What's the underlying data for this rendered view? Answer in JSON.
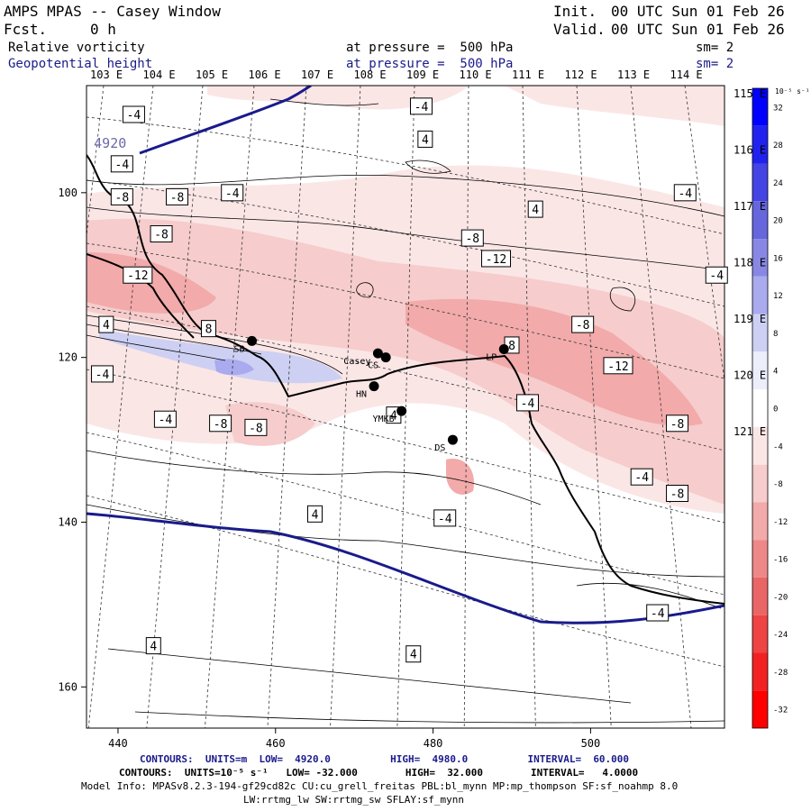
{
  "header": {
    "title": "AMPS MPAS -- Casey Window",
    "fcst_label": "Fcst.",
    "fcst_value": "0 h",
    "init_label": "Init.",
    "init_value": "00 UTC Sun 01 Feb 26",
    "valid_label": "Valid.",
    "valid_value": "00 UTC Sun 01 Feb 26",
    "field1_name": "Relative vorticity",
    "field1_level": "at pressure =  500 hPa",
    "field1_sm": "sm= 2",
    "field2_name": "Geopotential height",
    "field2_level": "at pressure =  500 hPa",
    "field2_sm": "sm= 2"
  },
  "top_lon_labels": [
    "103 E",
    "104 E",
    "105 E",
    "106 E",
    "107 E",
    "108 E",
    "109 E",
    "110 E",
    "111 E",
    "112 E",
    "113 E",
    "114 E"
  ],
  "right_lon_labels": [
    "115 E",
    "116 E",
    "117 E",
    "118 E",
    "119 E",
    "120 E",
    "121 E"
  ],
  "x_ticks": [
    440,
    460,
    480,
    500
  ],
  "y_ticks": [
    100,
    120,
    140,
    160
  ],
  "colorbar": {
    "units": "10⁻⁵ s⁻¹",
    "labels": [
      "32",
      "28",
      "24",
      "20",
      "16",
      "12",
      "8",
      "4",
      "0",
      "-4",
      "-8",
      "-12",
      "-16",
      "-20",
      "-24",
      "-28",
      "-32"
    ],
    "colors": [
      "#0000ff",
      "#2222ee",
      "#4444e4",
      "#6666dd",
      "#8888e4",
      "#aaaaee",
      "#cdd0f2",
      "#eceefb",
      "#ffffff",
      "#fbe6e6",
      "#f6cccc",
      "#f2aaaa",
      "#ee8888",
      "#ea6666",
      "#ee4444",
      "#f22222",
      "#ff0000"
    ]
  },
  "stations": [
    {
      "label": "SB",
      "x": 457,
      "y": 118
    },
    {
      "label": "Casey",
      "x": 473,
      "y": 119.5
    },
    {
      "label": "CS",
      "x": 474,
      "y": 120
    },
    {
      "label": "HN",
      "x": 472.5,
      "y": 123.5
    },
    {
      "label": "YMKB",
      "x": 476,
      "y": 126.5
    },
    {
      "label": "DS",
      "x": 482.5,
      "y": 130
    },
    {
      "label": "LP",
      "x": 489,
      "y": 119
    }
  ],
  "contour_labels": [
    {
      "text": "-4",
      "x": 478.5,
      "y": 89.5
    },
    {
      "text": "-4",
      "x": 442,
      "y": 90.5
    },
    {
      "text": "4",
      "x": 479,
      "y": 93.5
    },
    {
      "text": "-4",
      "x": 440.5,
      "y": 96.5
    },
    {
      "text": "-8",
      "x": 440.5,
      "y": 100.5
    },
    {
      "text": "-8",
      "x": 447.5,
      "y": 100.5
    },
    {
      "text": "-4",
      "x": 454.5,
      "y": 100
    },
    {
      "text": "4",
      "x": 493,
      "y": 102
    },
    {
      "text": "-4",
      "x": 512,
      "y": 100
    },
    {
      "text": "-8",
      "x": 445.5,
      "y": 105
    },
    {
      "text": "-8",
      "x": 485,
      "y": 105.5
    },
    {
      "text": "-12",
      "x": 488,
      "y": 108
    },
    {
      "text": "-12",
      "x": 442.5,
      "y": 110
    },
    {
      "text": "-4",
      "x": 516,
      "y": 110
    },
    {
      "text": "4",
      "x": 438.5,
      "y": 116
    },
    {
      "text": "8",
      "x": 451.5,
      "y": 116.5
    },
    {
      "text": "-8",
      "x": 499,
      "y": 116
    },
    {
      "text": "8",
      "x": 490,
      "y": 118.5
    },
    {
      "text": "-12",
      "x": 503.5,
      "y": 121
    },
    {
      "text": "-4",
      "x": 438,
      "y": 122
    },
    {
      "text": "-4",
      "x": 492,
      "y": 125.5
    },
    {
      "text": "4",
      "x": 475,
      "y": 127
    },
    {
      "text": "-4",
      "x": 446,
      "y": 127.5
    },
    {
      "text": "-8",
      "x": 453,
      "y": 128
    },
    {
      "text": "-8",
      "x": 457.5,
      "y": 128.5
    },
    {
      "text": "-8",
      "x": 511,
      "y": 128
    },
    {
      "text": "-4",
      "x": 506.5,
      "y": 134.5
    },
    {
      "text": "-8",
      "x": 511,
      "y": 136.5
    },
    {
      "text": "4",
      "x": 465,
      "y": 139
    },
    {
      "text": "-4",
      "x": 481.5,
      "y": 139.5
    },
    {
      "text": "-4",
      "x": 508.5,
      "y": 151
    },
    {
      "text": "4",
      "x": 444.5,
      "y": 155
    },
    {
      "text": "4",
      "x": 477.5,
      "y": 156
    }
  ],
  "height_label": {
    "text": "4920",
    "x": 439,
    "y": 94
  },
  "footer": {
    "line1": "CONTOURS:  UNITS=m  LOW=  4920.0          HIGH=  4980.0          INTERVAL=  60.000",
    "line2": "CONTOURS:  UNITS=10⁻⁵ s⁻¹   LOW= -32.000        HIGH=  32.000        INTERVAL=   4.0000",
    "line3": "Model Info: MPASv8.2.3-194-gf29cd82c CU:cu_grell_freitas PBL:bl_mynn MP:mp_thompson SF:sf_noahmp 8.0",
    "line4": "LW:rrtmg_lw SW:rrtmg_sw SFLAY:sf_mynn"
  }
}
